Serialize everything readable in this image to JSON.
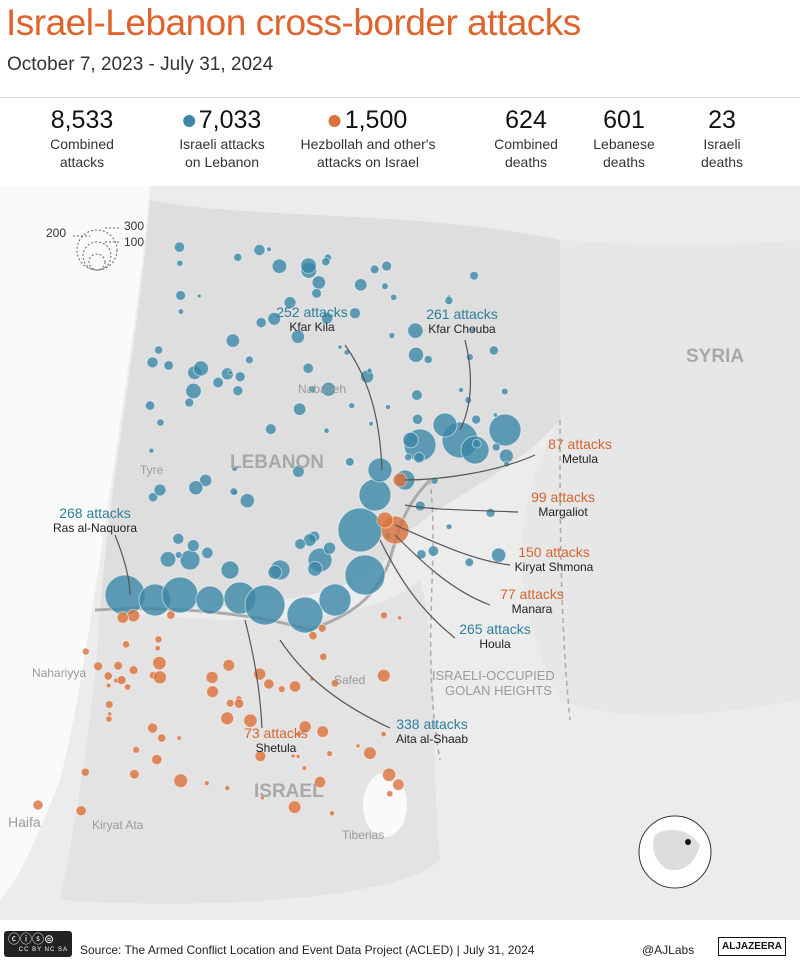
{
  "title": "Israel-Lebanon cross-border attacks",
  "subtitle": "October 7, 2023 - July 31, 2024",
  "colors": {
    "israeli_attacks": "#3b87a6",
    "hezbollah_attacks": "#d9713a",
    "title": "#e0622d"
  },
  "stats": [
    {
      "value": "8,533",
      "label1": "Combined",
      "label2": "attacks"
    },
    {
      "value": "7,033",
      "label1": "Israeli attacks",
      "label2": "on Lebanon",
      "dot": "teal"
    },
    {
      "value": "1,500",
      "label1": "Hezbollah and other's",
      "label2": "attacks on Israel",
      "dot": "orange"
    },
    {
      "value": "624",
      "label1": "Combined",
      "label2": "deaths"
    },
    {
      "value": "601",
      "label1": "Lebanese",
      "label2": "deaths"
    },
    {
      "value": "23",
      "label1": "Israeli",
      "label2": "deaths"
    }
  ],
  "size_legend": {
    "a": "200",
    "b": "300",
    "c": "100"
  },
  "annotations": [
    {
      "attacks": "252 attacks",
      "place": "Kfar Kila",
      "side": "israeli"
    },
    {
      "attacks": "261 attacks",
      "place": "Kfar Chouba",
      "side": "israeli"
    },
    {
      "attacks": "87 attacks",
      "place": "Metula",
      "side": "hezbollah"
    },
    {
      "attacks": "99 attacks",
      "place": "Margaliot",
      "side": "hezbollah"
    },
    {
      "attacks": "150 attacks",
      "place": "Kiryat Shmona",
      "side": "hezbollah"
    },
    {
      "attacks": "77 attacks",
      "place": "Manara",
      "side": "hezbollah"
    },
    {
      "attacks": "265 attacks",
      "place": "Houla",
      "side": "israeli"
    },
    {
      "attacks": "338 attacks",
      "place": "Aita al-Shaab",
      "side": "israeli"
    },
    {
      "attacks": "73 attacks",
      "place": "Shetula",
      "side": "hezbollah"
    },
    {
      "attacks": "268 attacks",
      "place": "Ras al-Naquora",
      "side": "israeli"
    }
  ],
  "places": {
    "nabatieh": "Nabatieh",
    "tyre": "Tyre",
    "nahariyya": "Nahariyya",
    "safed": "Safed",
    "haifa": "Haifa",
    "kiryat_ata": "Kiryat Ata",
    "tiberias": "Tiberias",
    "golan1": "ISRAELI-OCCUPIED",
    "golan2": "GOLAN HEIGHTS"
  },
  "countries": {
    "lebanon": "LEBANON",
    "syria": "SYRIA",
    "israel": "ISRAEL"
  },
  "footer": {
    "source": "Source:  The Armed Conflict Location and Event Data Project (ACLED) | July 31, 2024",
    "handle": "@AJLabs",
    "logo": "ALJAZEERA",
    "license": "cc by nc sa"
  }
}
